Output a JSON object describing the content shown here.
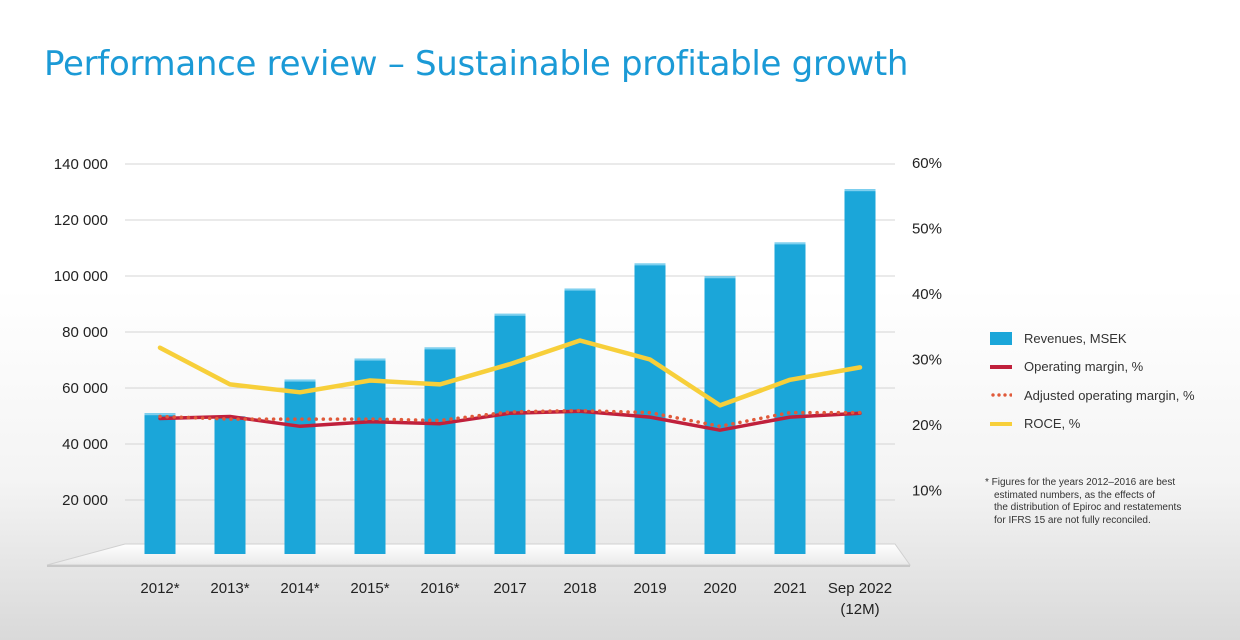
{
  "title": "Performance review – Sustainable profitable growth",
  "legend": {
    "revenues": "Revenues, MSEK",
    "operating_margin": "Operating margin, %",
    "adjusted_operating_margin": "Adjusted operating margin, %",
    "roce": "ROCE, %"
  },
  "footnote": {
    "lines": [
      "* Figures for the years 2012–2016 are best",
      "estimated numbers, as the effects of",
      "the distribution of Epiroc and restatements",
      "for IFRS 15 are not fully reconciled."
    ]
  },
  "colors": {
    "title": "#1b9ad6",
    "bars": "#1ba6d9",
    "operating_margin": "#c0203c",
    "adjusted_operating_margin": "#e05a3a",
    "roce": "#f7cf3a"
  },
  "chart_data": {
    "type": "bar",
    "categories": [
      "2012*",
      "2013*",
      "2014*",
      "2015*",
      "2016*",
      "2017",
      "2018",
      "2019",
      "2020",
      "2021",
      "Sep 2022\n(12M)"
    ],
    "y_left": {
      "ticks": [
        "140 000",
        "120 000",
        "100 000",
        "80 000",
        "60 000",
        "40 000",
        "20 000"
      ],
      "tick_values": [
        140000,
        120000,
        100000,
        80000,
        60000,
        40000,
        20000
      ],
      "range": [
        0,
        140000
      ]
    },
    "y_right": {
      "ticks": [
        "60%",
        "50%",
        "40%",
        "30%",
        "20%",
        "10%"
      ],
      "tick_values": [
        60,
        50,
        40,
        30,
        20,
        10
      ],
      "range": [
        0,
        60
      ]
    },
    "grid": true,
    "series": [
      {
        "name": "Revenues, MSEK",
        "type": "bar",
        "axis": "left",
        "values": [
          51000,
          50000,
          63000,
          70500,
          74500,
          86500,
          95500,
          104500,
          99900,
          112000,
          131000
        ]
      },
      {
        "name": "Operating margin, %",
        "type": "line",
        "axis": "right",
        "values": [
          21.0,
          21.3,
          19.8,
          20.5,
          20.2,
          21.8,
          22.1,
          21.2,
          19.2,
          21.2,
          21.8
        ]
      },
      {
        "name": "Adjusted operating margin, %",
        "type": "line",
        "style": "dotted",
        "axis": "right",
        "values": [
          21.3,
          20.9,
          20.9,
          20.9,
          20.7,
          22.0,
          22.2,
          21.9,
          19.8,
          21.9,
          21.9
        ]
      },
      {
        "name": "ROCE, %",
        "type": "line",
        "axis": "right",
        "values": [
          31.8,
          26.2,
          25.0,
          26.8,
          26.2,
          29.3,
          32.9,
          30.0,
          23.0,
          26.9,
          28.8
        ]
      }
    ],
    "legend_position": "right"
  }
}
